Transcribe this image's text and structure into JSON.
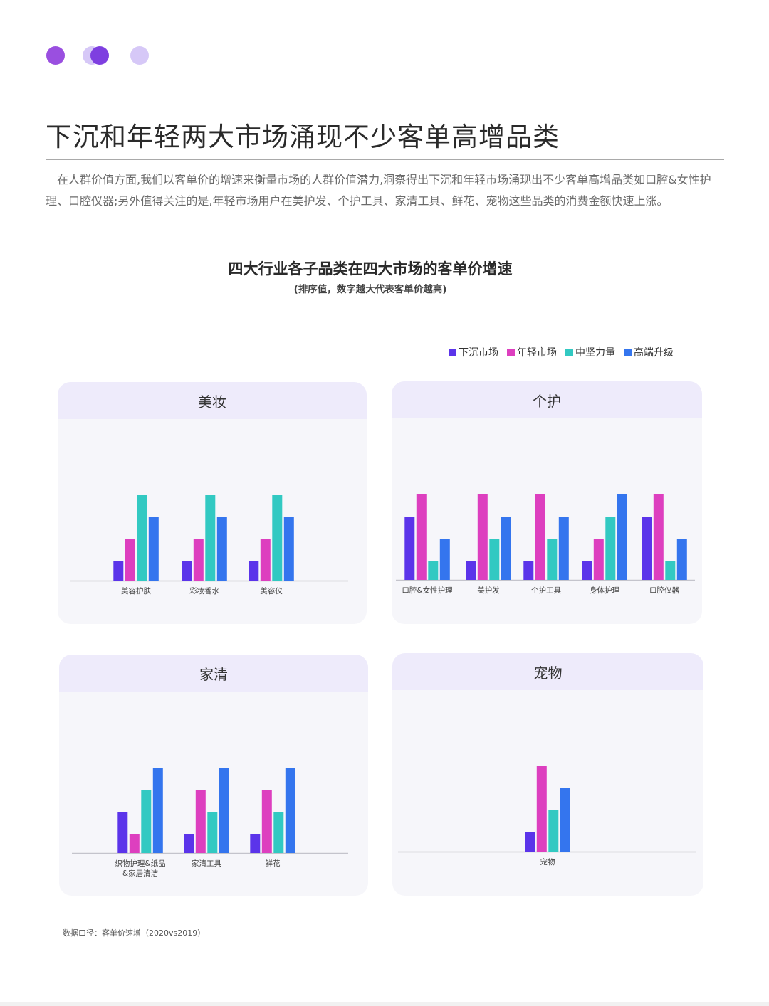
{
  "title": "下沉和年轻两大市场涌现不少客单高增品类",
  "intro": "在人群价值方面,我们以客单价的增速来衡量市场的人群价值潜力,洞察得出下沉和年轻市场涌现出不少客单高增品类如口腔&女性护理、口腔仪器;另外值得关注的是,年轻市场用户在美护发、个护工具、家清工具、鲜花、宠物这些品类的消费金额快速上涨。",
  "chart_title": "四大行业各子品类在四大市场的客单价增速",
  "chart_subtitle": "(排序值，数字越大代表客单价越高)",
  "legend": [
    {
      "name": "下沉市场",
      "color": "#5b34ea"
    },
    {
      "name": "年轻市场",
      "color": "#dd3fbf"
    },
    {
      "name": "中坚力量",
      "color": "#32c9c2"
    },
    {
      "name": "高端升级",
      "color": "#3475ee"
    }
  ],
  "footnote": "数据口径：客单价速增（2020vs2019）",
  "chart_data": [
    {
      "type": "bar",
      "title": "美妆",
      "categories": [
        [
          "美容护肤"
        ],
        [
          "彩妆香水"
        ],
        [
          "美容仪"
        ]
      ],
      "ylim": [
        0,
        4
      ],
      "series": [
        {
          "name": "下沉市场",
          "values": [
            1,
            1,
            1
          ]
        },
        {
          "name": "年轻市场",
          "values": [
            2,
            2,
            2
          ]
        },
        {
          "name": "中坚力量",
          "values": [
            4,
            4,
            4
          ]
        },
        {
          "name": "高端升级",
          "values": [
            3,
            3,
            3
          ]
        }
      ]
    },
    {
      "type": "bar",
      "title": "个护",
      "categories": [
        [
          "口腔&女性护理"
        ],
        [
          "美护发"
        ],
        [
          "个护工具"
        ],
        [
          "身体护理"
        ],
        [
          "口腔仪器"
        ]
      ],
      "ylim": [
        0,
        4
      ],
      "series": [
        {
          "name": "下沉市场",
          "values": [
            3,
            1,
            1,
            1,
            3
          ]
        },
        {
          "name": "年轻市场",
          "values": [
            4,
            4,
            4,
            2,
            4
          ]
        },
        {
          "name": "中坚力量",
          "values": [
            1,
            2,
            2,
            3,
            1
          ]
        },
        {
          "name": "高端升级",
          "values": [
            2,
            3,
            3,
            4,
            2
          ]
        }
      ]
    },
    {
      "type": "bar",
      "title": "家清",
      "categories": [
        [
          "织物护理&纸品",
          "&家居清洁"
        ],
        [
          "家清工具"
        ],
        [
          "鲜花"
        ]
      ],
      "ylim": [
        0,
        4
      ],
      "series": [
        {
          "name": "下沉市场",
          "values": [
            2,
            1,
            1
          ]
        },
        {
          "name": "年轻市场",
          "values": [
            1,
            3,
            3
          ]
        },
        {
          "name": "中坚力量",
          "values": [
            3,
            2,
            2
          ]
        },
        {
          "name": "高端升级",
          "values": [
            4,
            4,
            4
          ]
        }
      ]
    },
    {
      "type": "bar",
      "title": "宠物",
      "categories": [
        [
          "宠物"
        ]
      ],
      "ylim": [
        0,
        4
      ],
      "series": [
        {
          "name": "下沉市场",
          "values": [
            1
          ]
        },
        {
          "name": "年轻市场",
          "values": [
            4
          ]
        },
        {
          "name": "中坚力量",
          "values": [
            2
          ]
        },
        {
          "name": "高端升级",
          "values": [
            3
          ]
        }
      ]
    }
  ]
}
